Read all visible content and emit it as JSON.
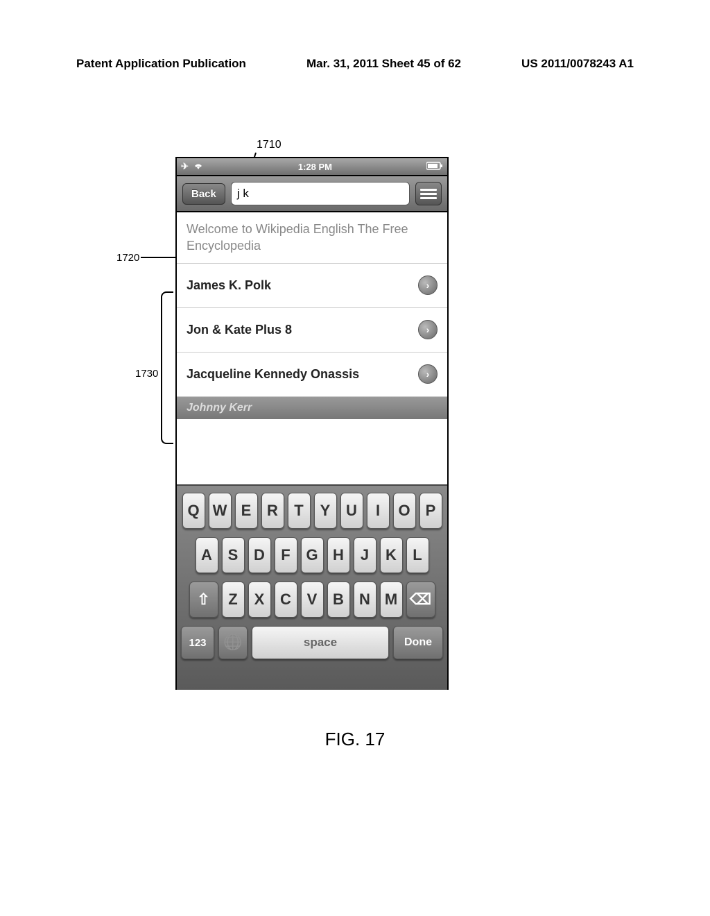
{
  "page": {
    "header_left": "Patent Application Publication",
    "header_center": "Mar. 31, 2011  Sheet 45 of 62",
    "header_right": "US 2011/0078243 A1",
    "figure_label": "FIG. 17"
  },
  "callouts": {
    "c1710": "1710",
    "c1720": "1720",
    "c1730": "1730"
  },
  "status": {
    "time": "1:28 PM"
  },
  "nav": {
    "back_label": "Back",
    "search_value": "j k"
  },
  "content": {
    "welcome": "Welcome to Wikipedia English The Free Encyclopedia",
    "results": [
      {
        "title": "James K. Polk"
      },
      {
        "title": "Jon & Kate Plus 8"
      },
      {
        "title": "Jacqueline Kennedy Onassis"
      }
    ],
    "partial": "Johnny Kerr"
  },
  "keyboard": {
    "row1": [
      "Q",
      "W",
      "E",
      "R",
      "T",
      "Y",
      "U",
      "I",
      "O",
      "P"
    ],
    "row2": [
      "A",
      "S",
      "D",
      "F",
      "G",
      "H",
      "J",
      "K",
      "L"
    ],
    "row3": [
      "Z",
      "X",
      "C",
      "V",
      "B",
      "N",
      "M"
    ],
    "shift": "⇧",
    "delete": "⌫",
    "num": "123",
    "globe": "🌐",
    "space": "space",
    "done": "Done"
  }
}
